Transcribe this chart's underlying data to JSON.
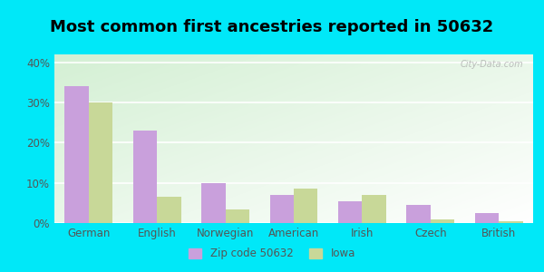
{
  "title": "Most common first ancestries reported in 50632",
  "categories": [
    "German",
    "English",
    "Norwegian",
    "American",
    "Irish",
    "Czech",
    "British"
  ],
  "zip_values": [
    34.0,
    23.0,
    10.0,
    7.0,
    5.5,
    4.5,
    2.5
  ],
  "iowa_values": [
    30.0,
    6.5,
    3.5,
    8.5,
    7.0,
    1.0,
    0.5
  ],
  "zip_color": "#c9a0dc",
  "iowa_color": "#c8d898",
  "background_outer": "#00e8f8",
  "ylim": [
    0,
    42
  ],
  "yticks": [
    0,
    10,
    20,
    30,
    40
  ],
  "ytick_labels": [
    "0%",
    "10%",
    "20%",
    "30%",
    "40%"
  ],
  "legend_zip_label": "Zip code 50632",
  "legend_iowa_label": "Iowa",
  "title_fontsize": 13,
  "axis_fontsize": 8.5,
  "bar_width": 0.35,
  "watermark": "City-Data.com"
}
